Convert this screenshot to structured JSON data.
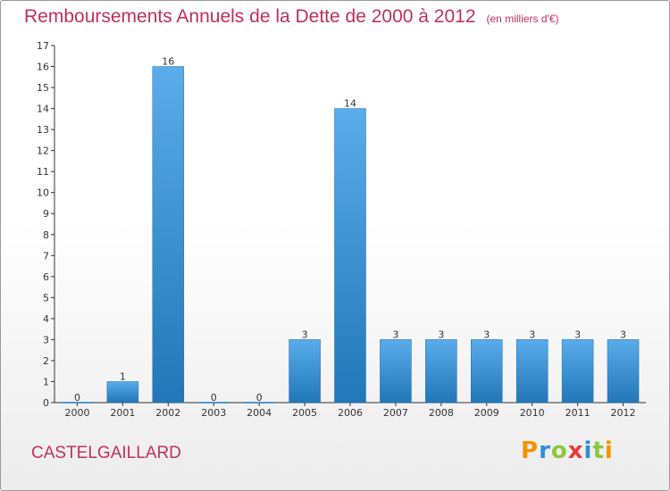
{
  "title": "Remboursements Annuels de la Dette de 2000 à 2012",
  "subtitle": "(en milliers d'€)",
  "place": "CASTELGAILLARD",
  "logo": {
    "text": "Proxiti",
    "colors": [
      "#f29400",
      "#2c8fd6",
      "#8cc63f",
      "#e23c3c",
      "#2c8fd6",
      "#8cc63f",
      "#f29400"
    ]
  },
  "colors": {
    "bar_light": "#5aacea",
    "bar_dark": "#2277b8",
    "title": "#c0305a",
    "axis": "#333333",
    "grid": "#555555"
  },
  "chart_data": {
    "type": "bar",
    "title": "Remboursements Annuels de la Dette de 2000 à 2012",
    "subtitle": "(en milliers d'€)",
    "categories": [
      "2000",
      "2001",
      "2002",
      "2003",
      "2004",
      "2005",
      "2006",
      "2007",
      "2008",
      "2009",
      "2010",
      "2011",
      "2012"
    ],
    "values": [
      0,
      1,
      16,
      0,
      0,
      3,
      14,
      3,
      3,
      3,
      3,
      3,
      3
    ],
    "data_labels": [
      "0",
      "1",
      "16",
      "0",
      "0",
      "3",
      "14",
      "3",
      "3",
      "3",
      "3",
      "3",
      "3"
    ],
    "yticks": [
      "0",
      "1",
      "2",
      "3",
      "4",
      "5",
      "6",
      "7",
      "8",
      "9",
      "10",
      "11",
      "12",
      "13",
      "14",
      "15",
      "16",
      "17"
    ],
    "ylim": [
      0,
      17
    ],
    "xlabel": "",
    "ylabel": "",
    "grid": false,
    "legend": "none"
  }
}
